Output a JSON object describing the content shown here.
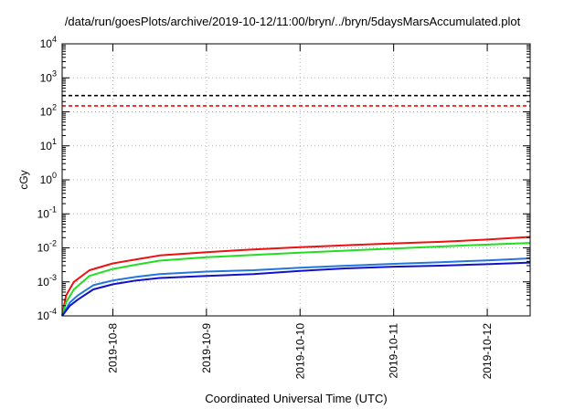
{
  "title": "/data/run/goesPlots/archive/2019-10-12/11:00/bryn/../bryn/5daysMarsAccumulated.plot",
  "chart_data": {
    "type": "line",
    "title": "/data/run/goesPlots/archive/2019-10-12/11:00/bryn/../bryn/5daysMarsAccumulated.plot",
    "xlabel": "Coordinated Universal Time (UTC)",
    "ylabel": "cGy",
    "yscale": "log",
    "ylim": [
      0.0001,
      10000
    ],
    "xlim": [
      "2019-10-07T11:00",
      "2019-10-12T11:00"
    ],
    "grid": true,
    "y_ticks": [
      {
        "base": "10",
        "exp": "4"
      },
      {
        "base": "10",
        "exp": "3"
      },
      {
        "base": "10",
        "exp": "2"
      },
      {
        "base": "10",
        "exp": "1"
      },
      {
        "base": "10",
        "exp": "0"
      },
      {
        "base": "10",
        "exp": "-1"
      },
      {
        "base": "10",
        "exp": "-2"
      },
      {
        "base": "10",
        "exp": "-3"
      },
      {
        "base": "10",
        "exp": "-4"
      }
    ],
    "x_ticks": [
      "2019-10-8",
      "2019-10-9",
      "2019-10-10",
      "2019-10-11",
      "2019-10-12"
    ],
    "reference_lines": [
      {
        "value": 300,
        "color": "#000000",
        "style": "dashed"
      },
      {
        "value": 150,
        "color": "#ff0000",
        "style": "dashed"
      }
    ],
    "series": [
      {
        "color": "#ee1111",
        "x": [
          "2019-10-07T11:00",
          "2019-10-07T12:00",
          "2019-10-07T14:00",
          "2019-10-07T18:00",
          "2019-10-08T00:00",
          "2019-10-08T06:00",
          "2019-10-08T12:00",
          "2019-10-09T00:00",
          "2019-10-09T12:00",
          "2019-10-10T00:00",
          "2019-10-10T12:00",
          "2019-10-11T00:00",
          "2019-10-11T12:00",
          "2019-10-12T00:00",
          "2019-10-12T11:00"
        ],
        "y": [
          0.0001,
          0.0004,
          0.001,
          0.0022,
          0.0035,
          0.0046,
          0.006,
          0.0075,
          0.009,
          0.0105,
          0.012,
          0.0135,
          0.015,
          0.0175,
          0.021
        ]
      },
      {
        "color": "#22dd22",
        "x": [
          "2019-10-07T11:00",
          "2019-10-07T12:00",
          "2019-10-07T14:00",
          "2019-10-07T18:00",
          "2019-10-08T00:00",
          "2019-10-08T06:00",
          "2019-10-08T12:00",
          "2019-10-09T00:00",
          "2019-10-09T12:00",
          "2019-10-10T00:00",
          "2019-10-10T12:00",
          "2019-10-11T00:00",
          "2019-10-11T12:00",
          "2019-10-12T00:00",
          "2019-10-12T11:00"
        ],
        "y": [
          0.0001,
          0.00025,
          0.0006,
          0.0015,
          0.0024,
          0.0032,
          0.0042,
          0.0053,
          0.0062,
          0.0072,
          0.0083,
          0.0095,
          0.011,
          0.0125,
          0.014
        ]
      },
      {
        "color": "#2277dd",
        "x": [
          "2019-10-07T11:00",
          "2019-10-07T13:00",
          "2019-10-07T15:00",
          "2019-10-07T19:00",
          "2019-10-08T00:00",
          "2019-10-08T06:00",
          "2019-10-08T12:00",
          "2019-10-09T00:00",
          "2019-10-09T12:00",
          "2019-10-10T00:00",
          "2019-10-10T12:00",
          "2019-10-11T00:00",
          "2019-10-11T12:00",
          "2019-10-12T00:00",
          "2019-10-12T11:00"
        ],
        "y": [
          0.0001,
          0.00025,
          0.0004,
          0.0008,
          0.0011,
          0.0014,
          0.0017,
          0.002,
          0.0022,
          0.0026,
          0.003,
          0.0034,
          0.0038,
          0.0043,
          0.0049
        ]
      },
      {
        "color": "#1111cc",
        "x": [
          "2019-10-07T11:00",
          "2019-10-07T13:00",
          "2019-10-07T15:00",
          "2019-10-07T19:00",
          "2019-10-08T00:00",
          "2019-10-08T06:00",
          "2019-10-08T12:00",
          "2019-10-09T00:00",
          "2019-10-09T12:00",
          "2019-10-10T00:00",
          "2019-10-10T12:00",
          "2019-10-11T00:00",
          "2019-10-11T12:00",
          "2019-10-12T00:00",
          "2019-10-12T11:00"
        ],
        "y": [
          0.0001,
          0.0002,
          0.0003,
          0.0006,
          0.00085,
          0.0011,
          0.0013,
          0.0015,
          0.0017,
          0.0021,
          0.0025,
          0.0028,
          0.003,
          0.0033,
          0.0037
        ]
      }
    ]
  }
}
